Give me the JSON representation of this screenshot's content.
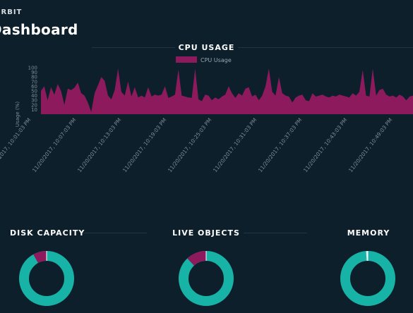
{
  "app": {
    "brand": "ORBIT",
    "title": "Dashboard"
  },
  "cpu": {
    "heading": "CPU USAGE",
    "chart_data": {
      "type": "area",
      "series": [
        {
          "name": "CPU Usage",
          "color": "#8e1a5e"
        }
      ],
      "ylabel": "Usage (%)",
      "ylim": [
        0,
        100
      ],
      "yticks": [
        10,
        20,
        30,
        40,
        50,
        60,
        70,
        80,
        90,
        100
      ],
      "values": [
        50,
        60,
        30,
        58,
        42,
        65,
        50,
        20,
        55,
        52,
        57,
        68,
        45,
        40,
        25,
        5,
        45,
        62,
        80,
        72,
        40,
        32,
        52,
        98,
        48,
        40,
        70,
        38,
        58,
        36,
        40,
        36,
        58,
        38,
        42,
        40,
        42,
        60,
        35,
        38,
        42,
        96,
        40,
        38,
        36,
        35,
        98,
        32,
        28,
        42,
        40,
        30,
        36,
        32,
        38,
        42,
        60,
        45,
        35,
        45,
        40,
        55,
        58,
        38,
        42,
        30,
        40,
        60,
        98,
        48,
        40,
        80,
        45,
        40,
        38,
        25,
        36,
        40,
        42,
        30,
        28,
        45,
        38,
        40,
        42,
        38,
        36,
        40,
        38,
        42,
        40,
        38,
        36,
        45,
        40,
        48,
        95,
        40,
        38,
        98,
        40,
        52,
        55,
        42,
        38,
        40,
        36,
        42,
        38,
        30,
        38,
        40
      ],
      "xticks": [
        "11/20/2017, 10:01:03 PM",
        "11/20/2017, 10:07:03 PM",
        "11/20/2017, 10:13:03 PM",
        "11/20/2017, 10:19:03 PM",
        "11/20/2017, 10:25:03 PM",
        "11/20/2017, 10:31:03 PM",
        "11/20/2017, 10:37:03 PM",
        "11/20/2017, 10:43:03 PM",
        "11/20/2017, 10:49:03 PM"
      ]
    }
  },
  "widgets": [
    {
      "heading": "DISK CAPACITY",
      "used_fraction": 0.08,
      "color_used": "#8e1a5e",
      "color_free": "#16b3a6"
    },
    {
      "heading": "LIVE OBJECTS",
      "used_fraction": 0.12,
      "color_used": "#8e1a5e",
      "color_free": "#16b3a6"
    },
    {
      "heading": "MEMORY",
      "used_fraction": 0.01,
      "color_used": "#e7eef0",
      "color_free": "#16b3a6"
    }
  ]
}
